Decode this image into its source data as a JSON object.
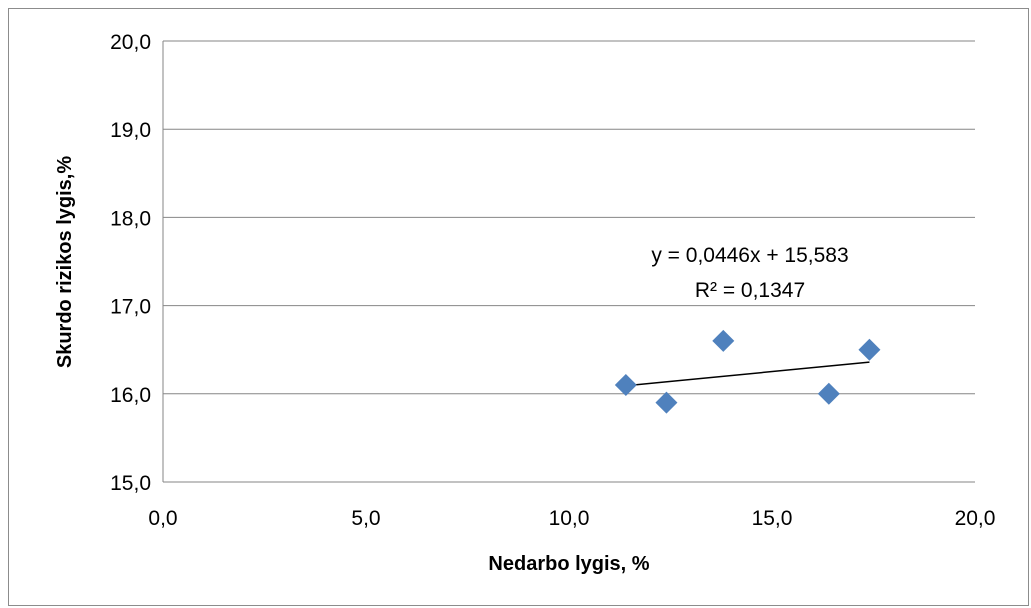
{
  "chart_data": {
    "type": "scatter",
    "title": "",
    "xlabel": "Nedarbo lygis, %",
    "ylabel": "Skurdo rizikos lygis,%",
    "xlim": [
      0,
      20
    ],
    "ylim": [
      15,
      20
    ],
    "x_ticks": [
      "0,0",
      "5,0",
      "10,0",
      "15,0",
      "20,0"
    ],
    "y_ticks": [
      "15,0",
      "16,0",
      "17,0",
      "18,0",
      "19,0",
      "20,0"
    ],
    "grid": "horizontal",
    "marker": "diamond",
    "marker_color": "#4F81BD",
    "series": [
      {
        "points": [
          {
            "x": 11.4,
            "y": 16.1
          },
          {
            "x": 12.4,
            "y": 15.9
          },
          {
            "x": 13.8,
            "y": 16.6
          },
          {
            "x": 16.4,
            "y": 16.0
          },
          {
            "x": 17.4,
            "y": 16.5
          }
        ]
      }
    ],
    "trendline": {
      "type": "linear",
      "slope": 0.0446,
      "intercept": 15.583,
      "x_range": [
        11.4,
        17.4
      ],
      "color": "#000000",
      "equation_label": "y = 0,0446x + 15,583",
      "r2_label": "R² = 0,1347"
    }
  }
}
